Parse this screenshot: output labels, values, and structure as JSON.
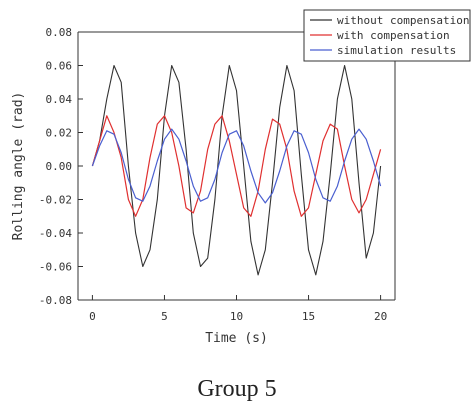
{
  "caption": "Group 5",
  "chart_data": {
    "type": "line",
    "title": "",
    "xlabel": "Time (s)",
    "ylabel": "Rolling angle (rad)",
    "xlim": [
      -1,
      21
    ],
    "ylim": [
      -0.08,
      0.08
    ],
    "xticks": [
      0,
      5,
      10,
      15,
      20
    ],
    "yticks": [
      0.08,
      0.06,
      0.04,
      0.02,
      0.0,
      -0.02,
      -0.04,
      -0.06,
      -0.08
    ],
    "xtick_labels": [
      "0",
      "5",
      "10",
      "15",
      "20"
    ],
    "ytick_labels": [
      "0.08",
      "0.06",
      "0.04",
      "0.02",
      "0.00",
      "-0.02",
      "-0.04",
      "-0.06",
      "-0.08"
    ],
    "grid": false,
    "legend_position": "top-right",
    "series": [
      {
        "name": "without compensation",
        "color": "#333333",
        "x": [
          0,
          0.5,
          1.0,
          1.5,
          2.0,
          2.5,
          3.0,
          3.5,
          4.0,
          4.5,
          5.0,
          5.5,
          6.0,
          6.5,
          7.0,
          7.5,
          8.0,
          8.5,
          9.0,
          9.5,
          10.0,
          10.5,
          11.0,
          11.5,
          12.0,
          12.5,
          13.0,
          13.5,
          14.0,
          14.5,
          15.0,
          15.5,
          16.0,
          16.5,
          17.0,
          17.5,
          18.0,
          18.5,
          19.0,
          19.5,
          20.0
        ],
        "y": [
          0.0,
          0.015,
          0.04,
          0.06,
          0.05,
          0.0,
          -0.04,
          -0.06,
          -0.05,
          -0.02,
          0.03,
          0.06,
          0.05,
          0.01,
          -0.04,
          -0.06,
          -0.055,
          -0.02,
          0.03,
          0.06,
          0.045,
          0.0,
          -0.045,
          -0.065,
          -0.05,
          -0.01,
          0.035,
          0.06,
          0.045,
          -0.005,
          -0.05,
          -0.065,
          -0.045,
          -0.005,
          0.04,
          0.06,
          0.04,
          -0.01,
          -0.055,
          -0.04,
          0.0
        ]
      },
      {
        "name": "with compensation",
        "color": "#e03030",
        "x": [
          0,
          0.5,
          1.0,
          1.5,
          2.0,
          2.5,
          3.0,
          3.5,
          4.0,
          4.5,
          5.0,
          5.5,
          6.0,
          6.5,
          7.0,
          7.5,
          8.0,
          8.5,
          9.0,
          9.5,
          10.0,
          10.5,
          11.0,
          11.5,
          12.0,
          12.5,
          13.0,
          13.5,
          14.0,
          14.5,
          15.0,
          15.5,
          16.0,
          16.5,
          17.0,
          17.5,
          18.0,
          18.5,
          19.0,
          19.5,
          20.0
        ],
        "y": [
          0.0,
          0.015,
          0.03,
          0.02,
          0.005,
          -0.02,
          -0.03,
          -0.02,
          0.005,
          0.025,
          0.03,
          0.02,
          0.0,
          -0.025,
          -0.028,
          -0.015,
          0.01,
          0.025,
          0.03,
          0.015,
          -0.005,
          -0.025,
          -0.03,
          -0.015,
          0.01,
          0.028,
          0.025,
          0.01,
          -0.015,
          -0.03,
          -0.025,
          -0.005,
          0.015,
          0.025,
          0.022,
          0.0,
          -0.02,
          -0.028,
          -0.02,
          -0.005,
          0.01
        ]
      },
      {
        "name": "simulation results",
        "color": "#4a5fd0",
        "x": [
          0,
          0.5,
          1.0,
          1.5,
          2.0,
          2.5,
          3.0,
          3.5,
          4.0,
          4.5,
          5.0,
          5.5,
          6.0,
          6.5,
          7.0,
          7.5,
          8.0,
          8.5,
          9.0,
          9.5,
          10.0,
          10.5,
          11.0,
          11.5,
          12.0,
          12.5,
          13.0,
          13.5,
          14.0,
          14.5,
          15.0,
          15.5,
          16.0,
          16.5,
          17.0,
          17.5,
          18.0,
          18.5,
          19.0,
          19.5,
          20.0
        ],
        "y": [
          0.0,
          0.012,
          0.021,
          0.019,
          0.008,
          -0.008,
          -0.019,
          -0.021,
          -0.012,
          0.003,
          0.016,
          0.022,
          0.016,
          0.003,
          -0.012,
          -0.021,
          -0.019,
          -0.008,
          0.008,
          0.019,
          0.021,
          0.012,
          -0.003,
          -0.016,
          -0.022,
          -0.016,
          -0.003,
          0.012,
          0.021,
          0.019,
          0.008,
          -0.008,
          -0.019,
          -0.021,
          -0.012,
          0.003,
          0.016,
          0.022,
          0.016,
          0.003,
          -0.012
        ]
      }
    ]
  }
}
